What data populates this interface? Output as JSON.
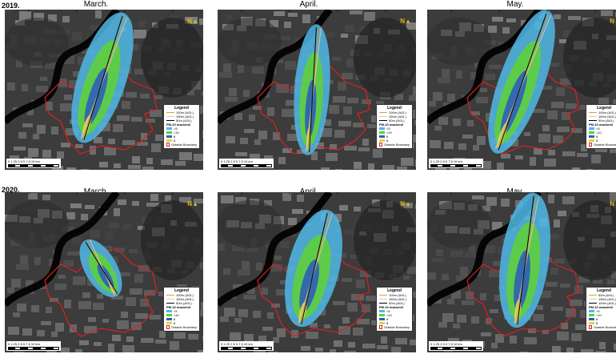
{
  "rows": [
    {
      "year": "2019.",
      "panels": [
        {
          "month": "March.",
          "colors": [
            "#c7c7c7",
            "#d89a2e",
            "#000000"
          ],
          "legend": {
            "title": "Legend",
            "lines": [
              "100m (AGL)",
              "150m (AGL)",
              "50m (AGL)"
            ],
            "unit": "PM-10 mass/m3",
            "bins": [
              "<5",
              "<10",
              "8",
              "8"
            ],
            "boundary": "Outside Boundary"
          },
          "scale": {
            "ticks": "0 1.25 2.5 5 7.5 10",
            "unit": "km"
          }
        },
        {
          "month": "April.",
          "colors": [
            "#c7c7c7",
            "#d89a2e",
            "#000000"
          ],
          "legend": {
            "title": "Legend",
            "lines": [
              "100m (AGL)",
              "150m (AGL)",
              "50m (AGL)"
            ],
            "unit": "PM-10 mass/m3",
            "bins": [
              "<5",
              "<10",
              "8",
              "8"
            ],
            "boundary": "Outside Boundary"
          },
          "scale": {
            "ticks": "0 1.25 2.5 5 7.5 10",
            "unit": "km"
          }
        },
        {
          "month": "May.",
          "colors": [
            "#c7c7c7",
            "#d89a2e",
            "#000000"
          ],
          "legend": {
            "title": "Legend",
            "lines": [
              "100m (AGL)",
              "150m (AGL)",
              "50m (AGL)"
            ],
            "unit": "PM-10 mass/m3",
            "bins": [
              "<5",
              "<10",
              "8",
              "8"
            ],
            "boundary": "Outside Boundary"
          },
          "scale": {
            "ticks": "0 1.25 2.5 5 7.5 10",
            "unit": "km"
          }
        }
      ]
    },
    {
      "year": "2020.",
      "panels": [
        {
          "month": "March.",
          "colors": [
            "#c7c7c7",
            "#d89a2e",
            "#000000"
          ],
          "legend": {
            "title": "Legend",
            "lines": [
              "100m (AGL)",
              "150m (AGL)",
              "50m (AGL)"
            ],
            "unit": "PM-10 mass/m3",
            "bins": [
              "<5",
              "<10",
              "8",
              "8"
            ],
            "boundary": "Outside Boundary"
          },
          "scale": {
            "ticks": "0 1.25 2.5 5 7.5 10",
            "unit": "km"
          }
        },
        {
          "month": "April.",
          "colors": [
            "#c7c7c7",
            "#d89a2e",
            "#000000"
          ],
          "legend": {
            "title": "Legend",
            "lines": [
              "100m (AGL)",
              "150m (AGL)",
              "50m (AGL)"
            ],
            "unit": "PM-10 mass/m3",
            "bins": [
              "<5",
              "<10",
              "8",
              "8"
            ],
            "boundary": "Outside Boundary"
          },
          "scale": {
            "ticks": "0 1.25 2.5 5 7.5 10",
            "unit": "km"
          }
        },
        {
          "month": "May.",
          "colors": [
            "#c7c7c7",
            "#d89a2e",
            "#000000"
          ],
          "legend": {
            "title": "Legend",
            "lines": [
              "50m (AGL)",
              "150m (AGL)",
              "100m (AGL)"
            ],
            "unit": "PM-10 mass/m3",
            "bins": [
              "<5",
              "<10",
              "8",
              "8"
            ],
            "boundary": "Outside Boundary"
          },
          "scale": {
            "ticks": "0 1.25 2.5 5 7.5 10",
            "unit": "km"
          }
        }
      ]
    }
  ],
  "north_label": "N",
  "plume_palette": [
    "#4fb8e6",
    "#5fcf3c",
    "#2e5fb8",
    "#e0d63a"
  ]
}
